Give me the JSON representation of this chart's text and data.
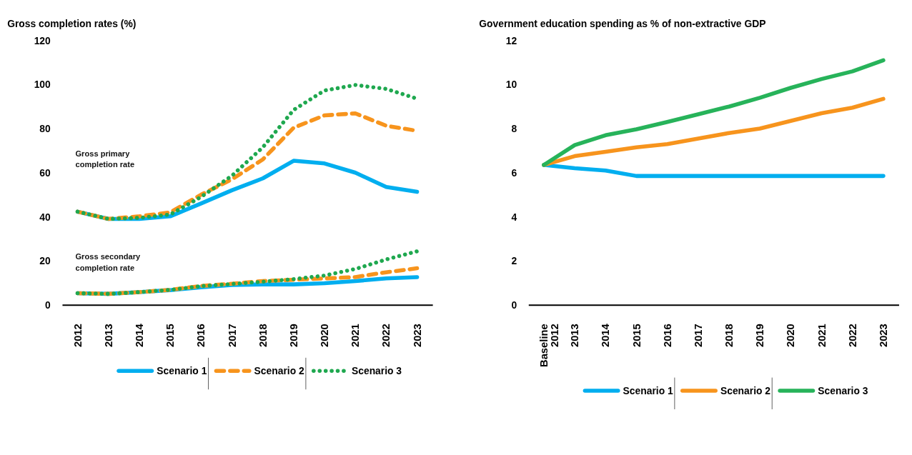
{
  "chart_data": [
    {
      "type": "line",
      "title": "Gross completion rates (%)",
      "categories": [
        "2012",
        "2013",
        "2014",
        "2015",
        "2016",
        "2017",
        "2018",
        "2019",
        "2020",
        "2021",
        "2022",
        "2023"
      ],
      "ylim": [
        0,
        120
      ],
      "yticks": [
        0,
        20,
        40,
        60,
        80,
        100,
        120
      ],
      "grid": false,
      "legend": "bottom",
      "annotations": [
        "Gross primary completion rate",
        "Gross secondary completion rate"
      ],
      "series": [
        {
          "name": "Scenario 1",
          "color": "#00aeef",
          "line_style": "solid",
          "values": [
            42.3,
            39,
            39,
            40.2,
            46,
            52,
            57.4,
            65.4,
            64.2,
            60,
            53.5,
            51.3
          ]
        },
        {
          "name": "Scenario 2",
          "color": "#f7941d",
          "line_style": "dashed",
          "values": [
            42.3,
            39,
            40.2,
            42,
            50,
            57,
            66,
            80.4,
            86,
            86.9,
            81.3,
            79
          ]
        },
        {
          "name": "Scenario 3",
          "color": "#1fa84f",
          "line_style": "dotted",
          "values": [
            42.3,
            39,
            39.5,
            41,
            49,
            58.6,
            71.5,
            88.5,
            97.3,
            99.8,
            98,
            93.6
          ]
        },
        {
          "color": "#00aeef",
          "line_style": "solid",
          "values": [
            5.3,
            5,
            5.8,
            6.7,
            8,
            9,
            9.3,
            9.3,
            9.8,
            10.8,
            12,
            12.6
          ]
        },
        {
          "color": "#f7941d",
          "line_style": "dashed",
          "values": [
            5.3,
            5,
            5.8,
            6.8,
            8.6,
            9.6,
            10.8,
            11.4,
            12,
            12.6,
            14.8,
            16.6
          ]
        },
        {
          "color": "#1fa84f",
          "line_style": "dotted",
          "values": [
            5.3,
            5,
            5.8,
            6.8,
            8.5,
            9.5,
            10.5,
            11.7,
            13.3,
            16.3,
            20.6,
            24.3
          ]
        }
      ]
    },
    {
      "type": "line",
      "title": "Government education spending as % of non-extractive GDP",
      "categories": [
        "Baseline 2012",
        "2013",
        "2014",
        "2015",
        "2016",
        "2017",
        "2018",
        "2019",
        "2020",
        "2021",
        "2022",
        "2023"
      ],
      "ylim": [
        0,
        12
      ],
      "yticks": [
        0,
        2,
        4,
        6,
        8,
        10,
        12
      ],
      "grid": false,
      "legend": "bottom",
      "series": [
        {
          "name": "Scenario 1",
          "color": "#00aeef",
          "line_style": "solid",
          "values": [
            6.35,
            6.2,
            6.1,
            5.85,
            5.85,
            5.85,
            5.85,
            5.85,
            5.85,
            5.85,
            5.85,
            5.85
          ]
        },
        {
          "name": "Scenario 2",
          "color": "#f7941d",
          "line_style": "solid",
          "values": [
            6.35,
            6.75,
            6.95,
            7.15,
            7.3,
            7.55,
            7.8,
            8.0,
            8.35,
            8.7,
            8.95,
            9.35
          ]
        },
        {
          "name": "Scenario 3",
          "color": "#27b35a",
          "line_style": "solid",
          "values": [
            6.35,
            7.25,
            7.7,
            7.97,
            8.3,
            8.65,
            9.0,
            9.4,
            9.85,
            10.25,
            10.6,
            11.1
          ]
        }
      ]
    }
  ]
}
